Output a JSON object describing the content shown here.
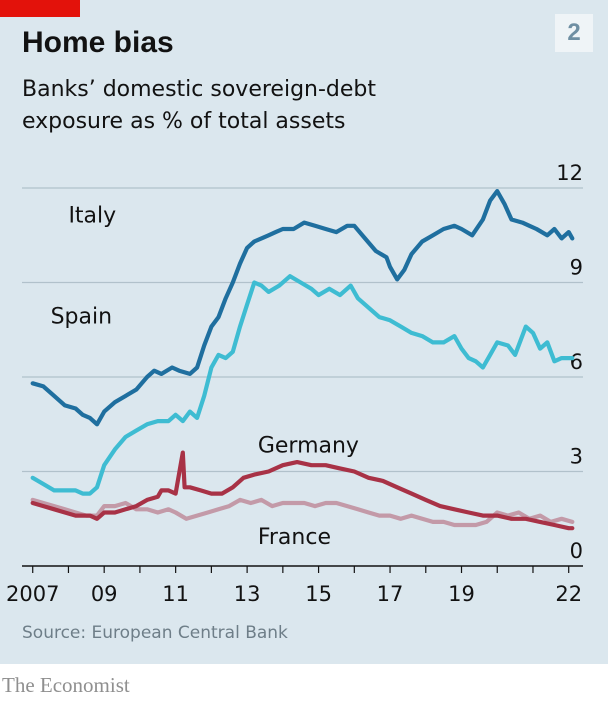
{
  "header": {
    "title": "Home bias",
    "subtitle": "Banks’ domestic sovereign-debt exposure as % of total assets",
    "badge": "2"
  },
  "footer": {
    "source": "Source: European Central Bank",
    "brand": "The Economist"
  },
  "colors": {
    "background": "#dbe7ee",
    "accent": "#e3120b",
    "italy": "#1f6f9f",
    "spain": "#3ebcd2",
    "germany": "#a83246",
    "france": "#c39aa8",
    "grid": "#b1c1cb"
  },
  "chart_data": {
    "type": "line",
    "title": "Home bias",
    "subtitle": "Banks’ domestic sovereign-debt exposure as % of total assets",
    "xlabel": "",
    "ylabel": "",
    "xlim": [
      2006.7,
      2022.4
    ],
    "ylim": [
      0,
      12
    ],
    "y_axis_side": "right",
    "grid": true,
    "legend": "inline labels",
    "x_ticks": [
      {
        "value": 2007,
        "label": "2007"
      },
      {
        "value": 2009,
        "label": "09"
      },
      {
        "value": 2011,
        "label": "11"
      },
      {
        "value": 2013,
        "label": "13"
      },
      {
        "value": 2015,
        "label": "15"
      },
      {
        "value": 2017,
        "label": "17"
      },
      {
        "value": 2019,
        "label": "19"
      },
      {
        "value": 2022,
        "label": "22"
      }
    ],
    "y_ticks": [
      {
        "value": 0,
        "label": "0"
      },
      {
        "value": 3,
        "label": "3"
      },
      {
        "value": 6,
        "label": "6"
      },
      {
        "value": 9,
        "label": "9"
      },
      {
        "value": 12,
        "label": "12"
      }
    ],
    "series": [
      {
        "name": "Italy",
        "color": "#1f6f9f",
        "label_at": [
          2008.0,
          10.9
        ],
        "points": [
          [
            2007.0,
            5.8
          ],
          [
            2007.3,
            5.7
          ],
          [
            2007.6,
            5.4
          ],
          [
            2007.9,
            5.1
          ],
          [
            2008.2,
            5.0
          ],
          [
            2008.4,
            4.8
          ],
          [
            2008.6,
            4.7
          ],
          [
            2008.8,
            4.5
          ],
          [
            2009.0,
            4.9
          ],
          [
            2009.3,
            5.2
          ],
          [
            2009.6,
            5.4
          ],
          [
            2009.9,
            5.6
          ],
          [
            2010.2,
            6.0
          ],
          [
            2010.4,
            6.2
          ],
          [
            2010.6,
            6.1
          ],
          [
            2010.9,
            6.3
          ],
          [
            2011.1,
            6.2
          ],
          [
            2011.4,
            6.1
          ],
          [
            2011.6,
            6.3
          ],
          [
            2011.8,
            7.0
          ],
          [
            2012.0,
            7.6
          ],
          [
            2012.2,
            7.9
          ],
          [
            2012.4,
            8.5
          ],
          [
            2012.6,
            9.0
          ],
          [
            2012.8,
            9.6
          ],
          [
            2013.0,
            10.1
          ],
          [
            2013.2,
            10.3
          ],
          [
            2013.4,
            10.4
          ],
          [
            2013.6,
            10.5
          ],
          [
            2013.8,
            10.6
          ],
          [
            2014.0,
            10.7
          ],
          [
            2014.3,
            10.7
          ],
          [
            2014.6,
            10.9
          ],
          [
            2014.9,
            10.8
          ],
          [
            2015.2,
            10.7
          ],
          [
            2015.5,
            10.6
          ],
          [
            2015.8,
            10.8
          ],
          [
            2016.0,
            10.8
          ],
          [
            2016.3,
            10.4
          ],
          [
            2016.6,
            10.0
          ],
          [
            2016.9,
            9.8
          ],
          [
            2017.0,
            9.5
          ],
          [
            2017.2,
            9.1
          ],
          [
            2017.4,
            9.4
          ],
          [
            2017.6,
            9.9
          ],
          [
            2017.9,
            10.3
          ],
          [
            2018.2,
            10.5
          ],
          [
            2018.5,
            10.7
          ],
          [
            2018.8,
            10.8
          ],
          [
            2019.0,
            10.7
          ],
          [
            2019.3,
            10.5
          ],
          [
            2019.6,
            11.0
          ],
          [
            2019.8,
            11.6
          ],
          [
            2020.0,
            11.9
          ],
          [
            2020.2,
            11.5
          ],
          [
            2020.4,
            11.0
          ],
          [
            2020.7,
            10.9
          ],
          [
            2020.9,
            10.8
          ],
          [
            2021.1,
            10.7
          ],
          [
            2021.4,
            10.5
          ],
          [
            2021.6,
            10.7
          ],
          [
            2021.8,
            10.4
          ],
          [
            2022.0,
            10.6
          ],
          [
            2022.1,
            10.4
          ]
        ]
      },
      {
        "name": "Spain",
        "color": "#3ebcd2",
        "label_at": [
          2007.5,
          7.7
        ],
        "points": [
          [
            2007.0,
            2.8
          ],
          [
            2007.3,
            2.6
          ],
          [
            2007.6,
            2.4
          ],
          [
            2007.9,
            2.4
          ],
          [
            2008.2,
            2.4
          ],
          [
            2008.4,
            2.3
          ],
          [
            2008.6,
            2.3
          ],
          [
            2008.8,
            2.5
          ],
          [
            2009.0,
            3.2
          ],
          [
            2009.3,
            3.7
          ],
          [
            2009.6,
            4.1
          ],
          [
            2009.9,
            4.3
          ],
          [
            2010.2,
            4.5
          ],
          [
            2010.5,
            4.6
          ],
          [
            2010.8,
            4.6
          ],
          [
            2011.0,
            4.8
          ],
          [
            2011.2,
            4.6
          ],
          [
            2011.4,
            4.9
          ],
          [
            2011.6,
            4.7
          ],
          [
            2011.8,
            5.4
          ],
          [
            2012.0,
            6.3
          ],
          [
            2012.2,
            6.7
          ],
          [
            2012.4,
            6.6
          ],
          [
            2012.6,
            6.8
          ],
          [
            2012.8,
            7.6
          ],
          [
            2013.0,
            8.3
          ],
          [
            2013.2,
            9.0
          ],
          [
            2013.4,
            8.9
          ],
          [
            2013.6,
            8.7
          ],
          [
            2013.9,
            8.9
          ],
          [
            2014.2,
            9.2
          ],
          [
            2014.5,
            9.0
          ],
          [
            2014.8,
            8.8
          ],
          [
            2015.0,
            8.6
          ],
          [
            2015.3,
            8.8
          ],
          [
            2015.6,
            8.6
          ],
          [
            2015.9,
            8.9
          ],
          [
            2016.1,
            8.5
          ],
          [
            2016.4,
            8.2
          ],
          [
            2016.7,
            7.9
          ],
          [
            2017.0,
            7.8
          ],
          [
            2017.3,
            7.6
          ],
          [
            2017.6,
            7.4
          ],
          [
            2017.9,
            7.3
          ],
          [
            2018.2,
            7.1
          ],
          [
            2018.5,
            7.1
          ],
          [
            2018.8,
            7.3
          ],
          [
            2019.0,
            6.9
          ],
          [
            2019.2,
            6.6
          ],
          [
            2019.4,
            6.5
          ],
          [
            2019.6,
            6.3
          ],
          [
            2019.8,
            6.7
          ],
          [
            2020.0,
            7.1
          ],
          [
            2020.3,
            7.0
          ],
          [
            2020.5,
            6.7
          ],
          [
            2020.8,
            7.6
          ],
          [
            2021.0,
            7.4
          ],
          [
            2021.2,
            6.9
          ],
          [
            2021.4,
            7.1
          ],
          [
            2021.6,
            6.5
          ],
          [
            2021.8,
            6.6
          ],
          [
            2022.0,
            6.6
          ],
          [
            2022.1,
            6.6
          ]
        ]
      },
      {
        "name": "Germany",
        "color": "#a83246",
        "label_at": [
          2013.3,
          3.6
        ],
        "points": [
          [
            2007.0,
            2.0
          ],
          [
            2007.3,
            1.9
          ],
          [
            2007.6,
            1.8
          ],
          [
            2007.9,
            1.7
          ],
          [
            2008.2,
            1.6
          ],
          [
            2008.4,
            1.6
          ],
          [
            2008.6,
            1.6
          ],
          [
            2008.8,
            1.5
          ],
          [
            2009.0,
            1.7
          ],
          [
            2009.3,
            1.7
          ],
          [
            2009.6,
            1.8
          ],
          [
            2009.9,
            1.9
          ],
          [
            2010.2,
            2.1
          ],
          [
            2010.5,
            2.2
          ],
          [
            2010.6,
            2.4
          ],
          [
            2010.8,
            2.4
          ],
          [
            2011.0,
            2.3
          ],
          [
            2011.2,
            3.6
          ],
          [
            2011.25,
            2.5
          ],
          [
            2011.4,
            2.5
          ],
          [
            2011.7,
            2.4
          ],
          [
            2012.0,
            2.3
          ],
          [
            2012.3,
            2.3
          ],
          [
            2012.6,
            2.5
          ],
          [
            2012.9,
            2.8
          ],
          [
            2013.2,
            2.9
          ],
          [
            2013.6,
            3.0
          ],
          [
            2014.0,
            3.2
          ],
          [
            2014.4,
            3.3
          ],
          [
            2014.8,
            3.2
          ],
          [
            2015.2,
            3.2
          ],
          [
            2015.6,
            3.1
          ],
          [
            2016.0,
            3.0
          ],
          [
            2016.4,
            2.8
          ],
          [
            2016.8,
            2.7
          ],
          [
            2017.2,
            2.5
          ],
          [
            2017.6,
            2.3
          ],
          [
            2018.0,
            2.1
          ],
          [
            2018.4,
            1.9
          ],
          [
            2018.8,
            1.8
          ],
          [
            2019.2,
            1.7
          ],
          [
            2019.6,
            1.6
          ],
          [
            2020.0,
            1.6
          ],
          [
            2020.4,
            1.5
          ],
          [
            2020.8,
            1.5
          ],
          [
            2021.2,
            1.4
          ],
          [
            2021.6,
            1.3
          ],
          [
            2022.0,
            1.2
          ],
          [
            2022.1,
            1.2
          ]
        ]
      },
      {
        "name": "France",
        "color": "#c39aa8",
        "label_at": [
          2013.3,
          0.7
        ],
        "points": [
          [
            2007.0,
            2.1
          ],
          [
            2007.3,
            2.0
          ],
          [
            2007.6,
            1.9
          ],
          [
            2007.9,
            1.8
          ],
          [
            2008.2,
            1.7
          ],
          [
            2008.5,
            1.6
          ],
          [
            2008.8,
            1.6
          ],
          [
            2009.0,
            1.9
          ],
          [
            2009.3,
            1.9
          ],
          [
            2009.6,
            2.0
          ],
          [
            2009.9,
            1.8
          ],
          [
            2010.2,
            1.8
          ],
          [
            2010.5,
            1.7
          ],
          [
            2010.8,
            1.8
          ],
          [
            2011.0,
            1.7
          ],
          [
            2011.3,
            1.5
          ],
          [
            2011.6,
            1.6
          ],
          [
            2011.9,
            1.7
          ],
          [
            2012.2,
            1.8
          ],
          [
            2012.5,
            1.9
          ],
          [
            2012.8,
            2.1
          ],
          [
            2013.1,
            2.0
          ],
          [
            2013.4,
            2.1
          ],
          [
            2013.7,
            1.9
          ],
          [
            2014.0,
            2.0
          ],
          [
            2014.3,
            2.0
          ],
          [
            2014.6,
            2.0
          ],
          [
            2014.9,
            1.9
          ],
          [
            2015.2,
            2.0
          ],
          [
            2015.5,
            2.0
          ],
          [
            2015.8,
            1.9
          ],
          [
            2016.1,
            1.8
          ],
          [
            2016.4,
            1.7
          ],
          [
            2016.7,
            1.6
          ],
          [
            2017.0,
            1.6
          ],
          [
            2017.3,
            1.5
          ],
          [
            2017.6,
            1.6
          ],
          [
            2017.9,
            1.5
          ],
          [
            2018.2,
            1.4
          ],
          [
            2018.5,
            1.4
          ],
          [
            2018.8,
            1.3
          ],
          [
            2019.1,
            1.3
          ],
          [
            2019.4,
            1.3
          ],
          [
            2019.7,
            1.4
          ],
          [
            2020.0,
            1.7
          ],
          [
            2020.3,
            1.6
          ],
          [
            2020.6,
            1.7
          ],
          [
            2020.9,
            1.5
          ],
          [
            2021.2,
            1.6
          ],
          [
            2021.5,
            1.4
          ],
          [
            2021.8,
            1.5
          ],
          [
            2022.1,
            1.4
          ]
        ]
      }
    ]
  }
}
